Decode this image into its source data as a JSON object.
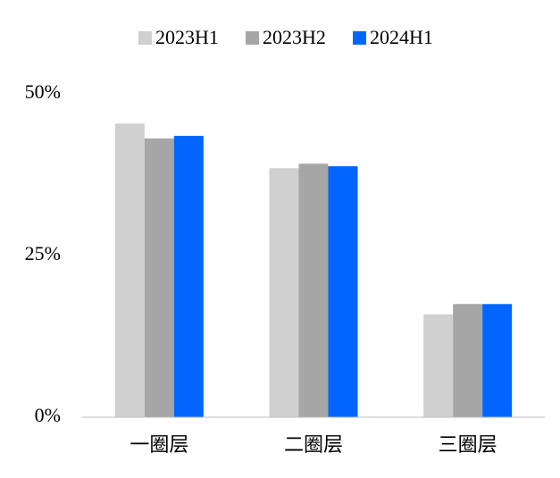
{
  "chart_data": {
    "type": "bar",
    "categories": [
      "一圈层",
      "二圈层",
      "三圈层"
    ],
    "series": [
      {
        "name": "2023H1",
        "color": "#d0d0d0",
        "values": [
          45.4,
          38.5,
          15.9
        ]
      },
      {
        "name": "2023H2",
        "color": "#a6a6a6",
        "values": [
          43.1,
          39.2,
          17.5
        ]
      },
      {
        "name": "2024H1",
        "color": "#0066ff",
        "values": [
          43.5,
          38.8,
          17.5
        ]
      }
    ],
    "ylim": [
      0,
      50
    ],
    "yticks": [
      {
        "value": 0,
        "label": "0%"
      },
      {
        "value": 25,
        "label": "25%"
      },
      {
        "value": 50,
        "label": "50%"
      }
    ],
    "grid": false,
    "legend": "top"
  }
}
